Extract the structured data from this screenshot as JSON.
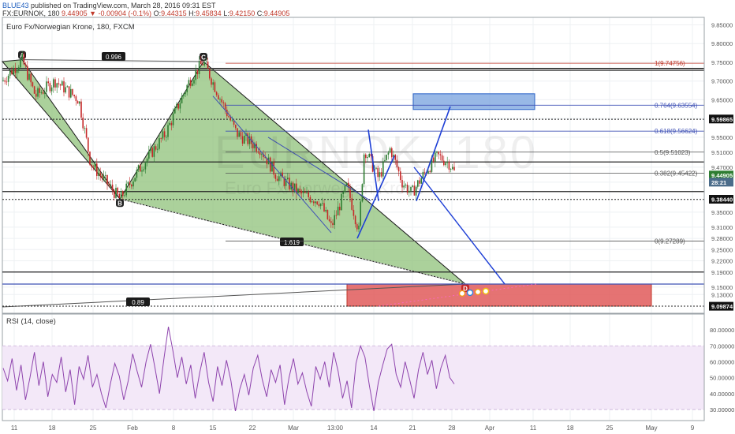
{
  "header": {
    "publisher": "BLUE43",
    "published_text": "published on TradingView.com, March 28, 2016 09:31 EST",
    "symbol_line": "FX:EURNOK, 180",
    "ohlc": {
      "last": "9.44905",
      "change": "▼ -0.00904 (-0.1%)",
      "open_label": "O:",
      "open": "9.44315",
      "high_label": "H:",
      "high": "9.45834",
      "low_label": "L:",
      "low": "9.42150",
      "close_label": "C:",
      "close": "9.44905"
    }
  },
  "chart_title": "Euro Fx/Norwegian Krone, 180, FXCM",
  "watermark": {
    "symbol": "EURNOK, 180",
    "name": "Euro Fx/Norwegian Krone"
  },
  "rsi_title": "RSI (14, close)",
  "colors": {
    "pattern_fill": "#8fc27a",
    "up_candle": "#2e7d32",
    "down_candle": "#c62828",
    "fib": "#3f51b5",
    "fib_top": "#c0392b",
    "target_box": "#e05a5a",
    "blue_box": "#7ea6e0",
    "rsi_line": "#8e44ad",
    "rsi_band": "#f3e8f8"
  },
  "chart_data": [
    {
      "type": "candlestick",
      "price_axis_ticks": [
        "9.85000",
        "9.80000",
        "9.75000",
        "9.70000",
        "9.65000",
        "9.60000",
        "9.55000",
        "9.51000",
        "9.47000",
        "9.43000",
        "9.35000",
        "9.31000",
        "9.28000",
        "9.25000",
        "9.22000",
        "9.19000",
        "9.15000",
        "9.13000"
      ],
      "price_labels": [
        {
          "text": "9.59865",
          "value": 9.59865
        },
        {
          "text": "9.44905",
          "value": 9.44905
        },
        {
          "text": "28:21",
          "value": 9.43
        },
        {
          "text": "9.38440",
          "value": 9.3844
        },
        {
          "text": "9.09874",
          "value": 9.09874
        }
      ],
      "ylim": [
        9.08,
        9.87
      ],
      "time_axis_ticks": [
        "11",
        "18",
        "25",
        "Feb",
        "8",
        "15",
        "22",
        "Mar",
        "13:00",
        "14",
        "21",
        "28",
        "Apr",
        "11",
        "18",
        "25",
        "May",
        "9"
      ],
      "fib_levels": [
        {
          "label": "1(9.74756)",
          "value": 9.74756,
          "top": true
        },
        {
          "label": "0.764(9.63554)",
          "value": 9.63554
        },
        {
          "label": "0.618(9.56624)",
          "value": 9.56624
        },
        {
          "label": "0.5(9.51023)",
          "value": 9.51023
        },
        {
          "label": "0.382(9.45422)",
          "value": 9.45422
        },
        {
          "label": "0(9.27289)",
          "value": 9.27289
        }
      ],
      "pattern_points": [
        {
          "label": "A",
          "value": 9.757
        },
        {
          "label": "B",
          "value": 9.385
        },
        {
          "label": "C",
          "value": 9.752
        },
        {
          "label": "D",
          "value": 9.158
        }
      ],
      "ratio_labels": [
        "0.996",
        "1.619",
        "0.89"
      ],
      "horizontal_levels": [
        9.733,
        9.728,
        9.598,
        9.484,
        9.405,
        9.384,
        9.19,
        9.158,
        9.099
      ],
      "target_box": {
        "low": 9.099,
        "high": 9.158
      },
      "projection_box": {
        "low": 9.624,
        "high": 9.666
      }
    },
    {
      "type": "line",
      "name": "RSI (14, close)",
      "ticks": [
        "80.00000",
        "70.00000",
        "60.00000",
        "50.00000",
        "40.00000",
        "30.00000"
      ],
      "ylim": [
        25,
        85
      ],
      "band": [
        30,
        70
      ],
      "values": [
        56,
        48,
        62,
        42,
        58,
        36,
        50,
        66,
        45,
        60,
        38,
        52,
        47,
        63,
        41,
        55,
        33,
        57,
        49,
        64,
        44,
        52,
        40,
        31,
        46,
        59,
        51,
        36,
        48,
        65,
        54,
        44,
        60,
        71,
        56,
        40,
        62,
        82,
        67,
        50,
        63,
        46,
        58,
        37,
        53,
        66,
        47,
        35,
        57,
        45,
        61,
        48,
        29,
        43,
        52,
        39,
        56,
        64,
        49,
        38,
        55,
        47,
        58,
        33,
        50,
        62,
        46,
        53,
        41,
        32,
        57,
        49,
        60,
        44,
        66,
        54,
        37,
        48,
        31,
        59,
        70,
        63,
        45,
        29,
        47,
        58,
        68,
        71,
        52,
        44,
        60,
        49,
        37,
        55,
        66,
        52,
        61,
        43,
        56,
        64,
        50,
        46
      ]
    }
  ]
}
